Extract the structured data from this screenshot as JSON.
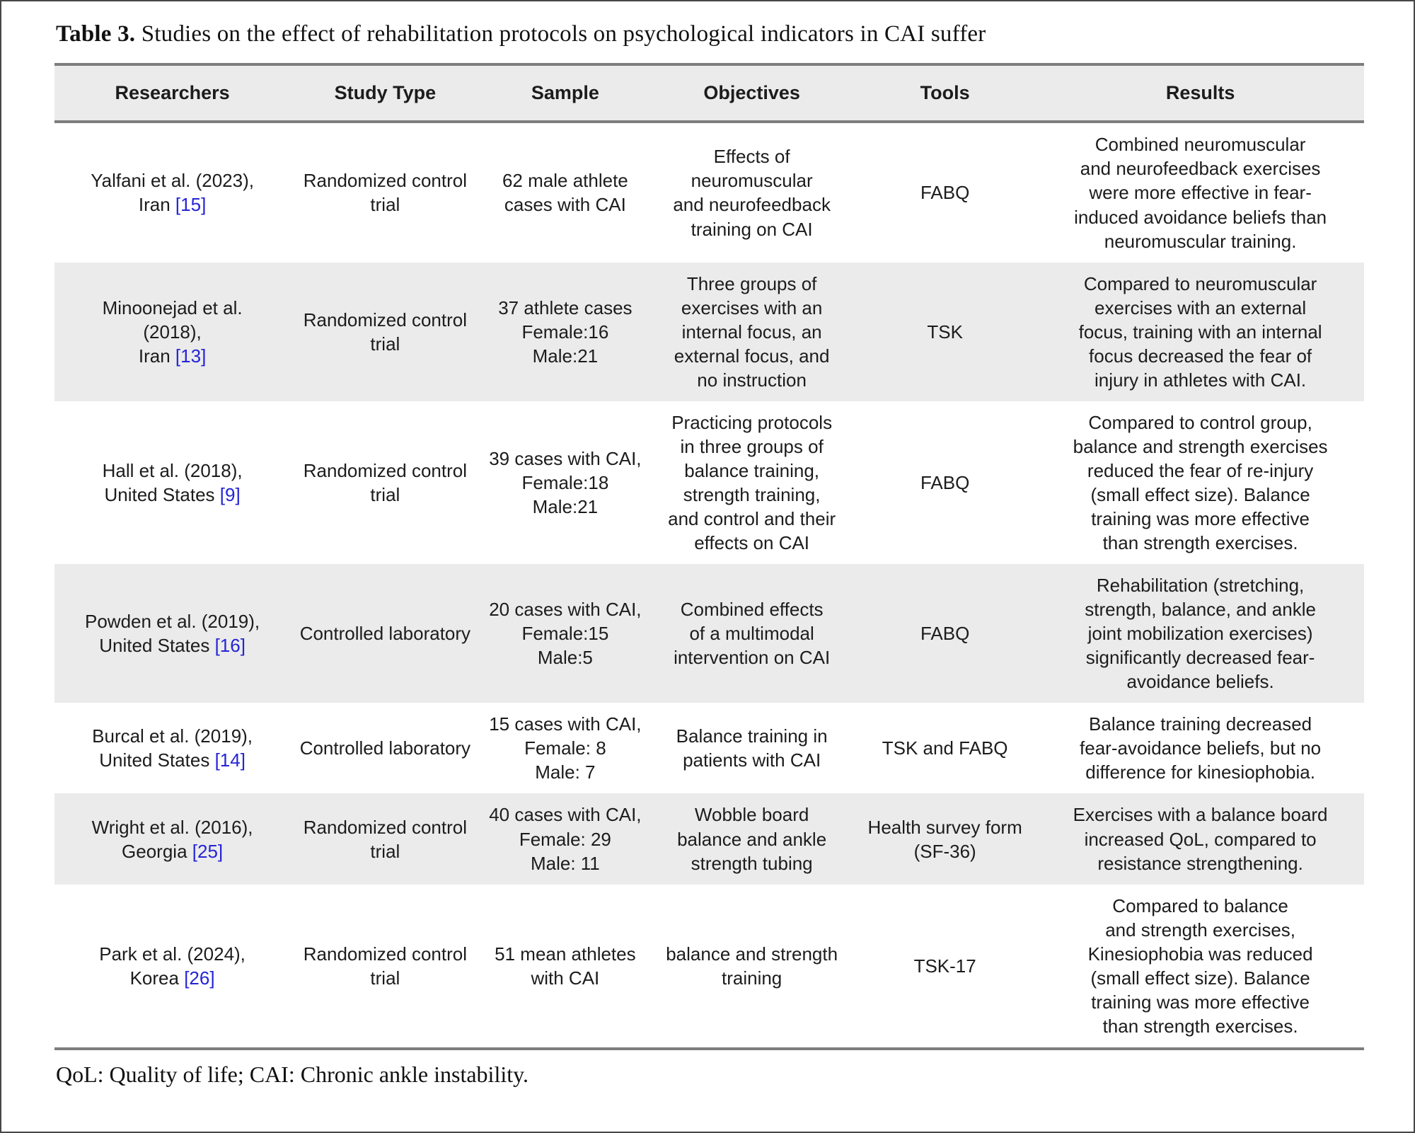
{
  "page": {
    "caption_label": "Table 3.",
    "caption_text": "Studies on the effect of rehabilitation protocols on psychological indicators in CAI suffer",
    "footnote": "QoL: Quality of life; CAI: Chronic ankle instability."
  },
  "colors": {
    "citation_blue": "#2424d6",
    "row_stripe": "#ebebeb",
    "rule_gray": "#7d7d7d"
  },
  "table": {
    "columns": [
      "Researchers",
      "Study Type",
      "Sample",
      "Objectives",
      "Tools",
      "Results"
    ],
    "rows": [
      {
        "shaded": false,
        "researchers": "Yalfani et al. (2023),\nIran",
        "ref": "[15]",
        "study_type": "Randomized control\ntrial",
        "sample": "62 male athlete\ncases with CAI",
        "objectives": "Effects of\nneuromuscular\nand neurofeedback\ntraining on CAI",
        "tools": "FABQ",
        "results": "Combined neuromuscular\nand neurofeedback exercises\nwere more effective in fear-\ninduced avoidance beliefs than\nneuromuscular training."
      },
      {
        "shaded": true,
        "researchers": "Minoonejad et al.\n(2018),\nIran",
        "ref": "[13]",
        "study_type": "Randomized control\ntrial",
        "sample": "37 athlete cases\nFemale:16\nMale:21",
        "objectives": "Three groups of\nexercises with an\ninternal focus, an\nexternal focus, and\nno instruction",
        "tools": "TSK",
        "results": "Compared to neuromuscular\nexercises with an external\nfocus, training with an internal\nfocus decreased the fear of\ninjury in athletes with CAI."
      },
      {
        "shaded": false,
        "researchers": "Hall et al. (2018),\nUnited States",
        "ref": "[9]",
        "study_type": "Randomized control\ntrial",
        "sample": "39 cases with CAI,\nFemale:18\nMale:21",
        "objectives": "Practicing protocols\nin three groups of\nbalance training,\nstrength training,\nand control and their\neffects on CAI",
        "tools": "FABQ",
        "results": "Compared to control group,\nbalance and strength exercises\nreduced the fear of re-injury\n(small effect size). Balance\ntraining was more effective\nthan strength exercises."
      },
      {
        "shaded": true,
        "researchers": "Powden et al. (2019),\nUnited States",
        "ref": "[16]",
        "study_type": "Controlled laboratory",
        "sample": "20 cases with CAI,\nFemale:15\nMale:5",
        "objectives": "Combined effects\nof a multimodal\nintervention on CAI",
        "tools": "FABQ",
        "results": "Rehabilitation (stretching,\nstrength, balance, and ankle\njoint mobilization exercises)\nsignificantly decreased fear-\navoidance beliefs."
      },
      {
        "shaded": false,
        "researchers": "Burcal et al. (2019),\nUnited States",
        "ref": "[14]",
        "study_type": "Controlled laboratory",
        "sample": "15 cases with CAI,\nFemale: 8\nMale: 7",
        "objectives": "Balance training in\npatients with CAI",
        "tools": "TSK and FABQ",
        "results": "Balance training decreased\nfear-avoidance beliefs, but no\ndifference for kinesiophobia."
      },
      {
        "shaded": true,
        "researchers": "Wright et al. (2016),\nGeorgia",
        "ref": "[25]",
        "study_type": "Randomized control\ntrial",
        "sample": "40 cases with CAI,\nFemale: 29\nMale: 11",
        "objectives": "Wobble board\nbalance and ankle\nstrength tubing",
        "tools": "Health survey form\n(SF-36)",
        "results": "Exercises with a balance board\nincreased QoL, compared to\nresistance strengthening."
      },
      {
        "shaded": false,
        "researchers": "Park et al. (2024),\nKorea",
        "ref": "[26]",
        "study_type": "Randomized control\ntrial",
        "sample": "51 mean athletes\nwith CAI",
        "objectives": "balance and strength\ntraining",
        "tools": "TSK-17",
        "results": "Compared to balance\nand strength exercises,\nKinesiophobia was reduced\n(small effect size). Balance\ntraining was more effective\nthan strength exercises."
      }
    ]
  }
}
